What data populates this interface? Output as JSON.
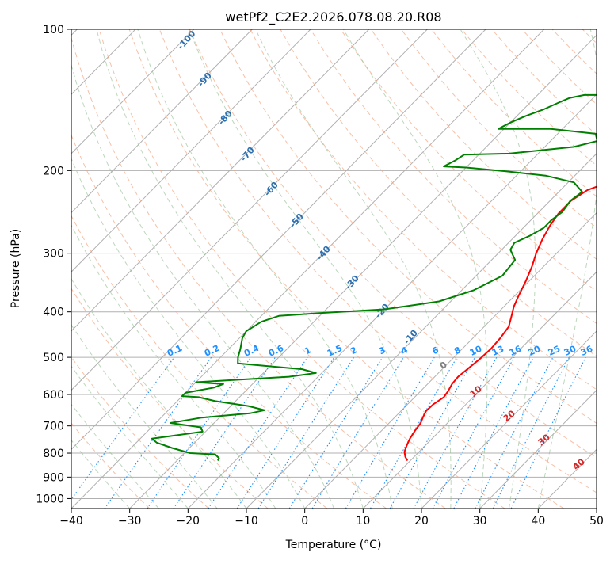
{
  "chart_data": {
    "type": "skew-t",
    "title": "wetPf2_C2E2.2026.078.08.20.R08",
    "xlabel": "Temperature (°C)",
    "ylabel": "Pressure (hPa)",
    "xlim": [
      -40,
      50
    ],
    "ylim": [
      1050,
      100
    ],
    "y_scale": "log",
    "x_ticks": [
      -40,
      -30,
      -20,
      -10,
      0,
      10,
      20,
      30,
      40,
      50
    ],
    "y_ticks": [
      100,
      200,
      300,
      400,
      500,
      600,
      700,
      800,
      900,
      1000
    ],
    "grid": true,
    "series": [
      {
        "color": "#ff0000",
        "points": [
          [
            9.5,
            830
          ],
          [
            8.5,
            815
          ],
          [
            7.5,
            795
          ],
          [
            6.8,
            770
          ],
          [
            6.2,
            745
          ],
          [
            5.7,
            715
          ],
          [
            5.4,
            690
          ],
          [
            4.8,
            670
          ],
          [
            4.3,
            650
          ],
          [
            4.4,
            630
          ],
          [
            5.0,
            608
          ],
          [
            4.7,
            590
          ],
          [
            4.2,
            570
          ],
          [
            4.0,
            550
          ],
          [
            4.3,
            530
          ],
          [
            4.7,
            505
          ],
          [
            4.9,
            480
          ],
          [
            4.7,
            455
          ],
          [
            4.2,
            430
          ],
          [
            3.0,
            410
          ],
          [
            1.7,
            390
          ],
          [
            0.7,
            370
          ],
          [
            -0.5,
            345
          ],
          [
            -2.0,
            320
          ],
          [
            -3.5,
            300
          ],
          [
            -4.8,
            280
          ],
          [
            -5.8,
            262
          ],
          [
            -6.4,
            247
          ],
          [
            -6.4,
            232
          ],
          [
            -5.4,
            220
          ],
          [
            -2.5,
            210
          ],
          [
            2.0,
            200
          ],
          [
            6.0,
            192
          ],
          [
            8.5,
            184
          ],
          [
            10.5,
            175
          ],
          [
            12.8,
            167
          ],
          [
            16.0,
            159
          ],
          [
            20.0,
            151
          ],
          [
            22.5,
            144
          ],
          [
            24.5,
            138
          ],
          [
            25.6,
            130
          ],
          [
            26.5,
            125
          ],
          [
            28.5,
            119
          ],
          [
            30.5,
            113
          ],
          [
            32.5,
            108
          ],
          [
            33.2,
            104
          ],
          [
            33.2,
            100
          ]
        ]
      },
      {
        "color": "#008000",
        "points": [
          [
            -23.0,
            830
          ],
          [
            -23.2,
            820
          ],
          [
            -24.5,
            805
          ],
          [
            -29.0,
            800
          ],
          [
            -33.0,
            780
          ],
          [
            -36.5,
            760
          ],
          [
            -38.0,
            745
          ],
          [
            -35.0,
            735
          ],
          [
            -30.5,
            720
          ],
          [
            -31.5,
            705
          ],
          [
            -37.5,
            690
          ],
          [
            -33.0,
            672
          ],
          [
            -25.5,
            658
          ],
          [
            -23.5,
            648
          ],
          [
            -27.0,
            635
          ],
          [
            -33.5,
            620
          ],
          [
            -37.0,
            608
          ],
          [
            -40.0,
            605
          ],
          [
            -40.0,
            595
          ],
          [
            -36.0,
            580
          ],
          [
            -35.0,
            570
          ],
          [
            -40.0,
            565
          ],
          [
            -25.0,
            550
          ],
          [
            -21.0,
            540
          ],
          [
            -24.0,
            530
          ],
          [
            -36.0,
            515
          ],
          [
            -37.0,
            500
          ],
          [
            -38.0,
            480
          ],
          [
            -39.5,
            455
          ],
          [
            -40.0,
            440
          ],
          [
            -39.0,
            420
          ],
          [
            -37.0,
            408
          ],
          [
            -30.0,
            402
          ],
          [
            -20.0,
            395
          ],
          [
            -12.0,
            380
          ],
          [
            -8.0,
            360
          ],
          [
            -5.5,
            335
          ],
          [
            -6.0,
            310
          ],
          [
            -8.5,
            295
          ],
          [
            -9.0,
            285
          ],
          [
            -7.5,
            275
          ],
          [
            -6.5,
            265
          ],
          [
            -6.5,
            255
          ],
          [
            -6.0,
            245
          ],
          [
            -6.5,
            232
          ],
          [
            -6.0,
            222
          ],
          [
            -9.0,
            212
          ],
          [
            -15.0,
            205
          ],
          [
            -22.0,
            201
          ],
          [
            -30.0,
            197
          ],
          [
            -34.0,
            196
          ],
          [
            -33.0,
            190
          ],
          [
            -32.5,
            185
          ],
          [
            -25.0,
            184
          ],
          [
            -15.0,
            178
          ],
          [
            -12.0,
            173
          ],
          [
            -13.5,
            167
          ],
          [
            -22.0,
            163
          ],
          [
            -31.0,
            163
          ],
          [
            -30.0,
            158
          ],
          [
            -28.5,
            153
          ],
          [
            -26.5,
            148
          ],
          [
            -25.0,
            143
          ],
          [
            -24.0,
            140
          ],
          [
            -22.0,
            138
          ],
          [
            -12.0,
            138
          ],
          [
            -7.0,
            131
          ],
          [
            -5.0,
            124
          ],
          [
            -6.0,
            118
          ],
          [
            -6.5,
            114
          ],
          [
            -5.5,
            110
          ],
          [
            -3.0,
            106
          ],
          [
            1.0,
            102
          ],
          [
            2.0,
            100
          ]
        ]
      }
    ],
    "dry_adiabat_labels": [
      "-100",
      "-90",
      "-80",
      "-70",
      "-60",
      "-50",
      "-40",
      "-30",
      "-20",
      "-10"
    ],
    "moist_adiabat_labels": [
      "0",
      "10",
      "20",
      "30",
      "40"
    ],
    "mixing_ratio_labels": [
      "0.1",
      "0.2",
      "0.4",
      "0.6",
      "1",
      "1.5",
      "2",
      "3",
      "4",
      "6",
      "8",
      "10",
      "13",
      "16",
      "20",
      "25",
      "30",
      "36"
    ]
  }
}
